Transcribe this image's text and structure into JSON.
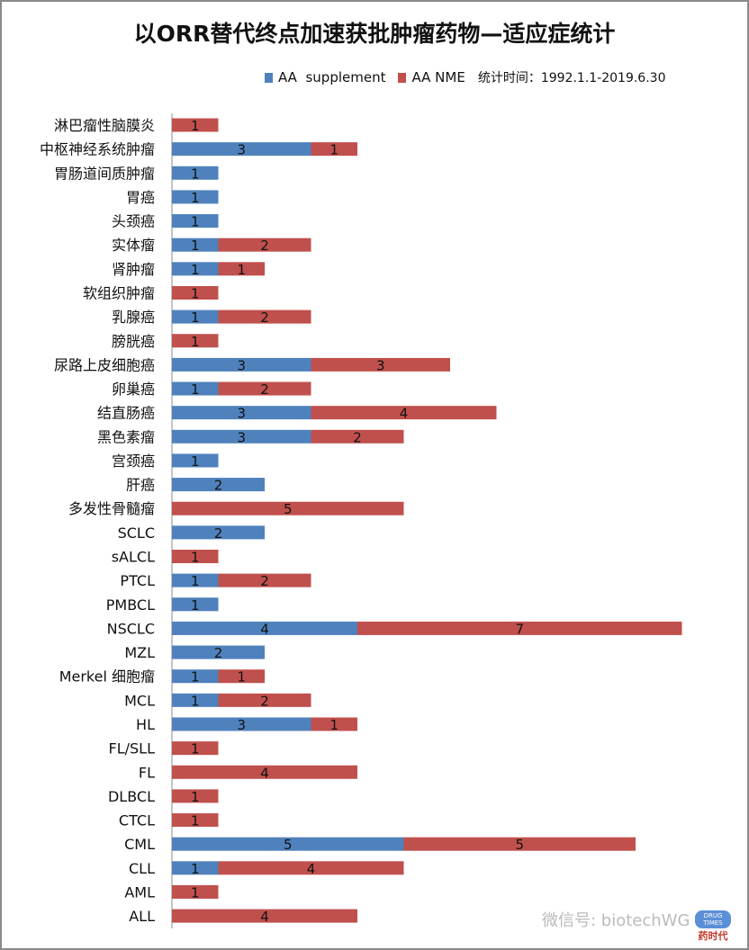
{
  "chart_data": {
    "type": "bar",
    "orientation": "horizontal",
    "stacked": true,
    "title": "以ORR替代终点加速获批肿瘤药物—适应症统计",
    "note": "统计时间：1992.1.1-2019.6.30",
    "legend_position": "top-right",
    "grid": false,
    "categories": [
      "淋巴瘤性脑膜炎",
      "中枢神经系统肿瘤",
      "胃肠道间质肿瘤",
      "胃癌",
      "头颈癌",
      "实体瘤",
      "肾肿瘤",
      "软组织肿瘤",
      "乳腺癌",
      "膀胱癌",
      "尿路上皮细胞癌",
      "卵巢癌",
      "结直肠癌",
      "黑色素瘤",
      "宫颈癌",
      "肝癌",
      "多发性骨髓瘤",
      "SCLC",
      "sALCL",
      "PTCL",
      "PMBCL",
      "NSCLC",
      "MZL",
      "Merkel 细胞瘤",
      "MCL",
      "HL",
      "FL/SLL",
      "FL",
      "DLBCL",
      "CTCL",
      "CML",
      "CLL",
      "AML",
      "ALL"
    ],
    "series": [
      {
        "name": "AA  supplement",
        "color": "#4f81bd",
        "values": [
          0,
          3,
          1,
          1,
          1,
          1,
          1,
          0,
          1,
          0,
          3,
          1,
          3,
          3,
          1,
          2,
          0,
          2,
          0,
          1,
          1,
          4,
          2,
          1,
          1,
          3,
          0,
          0,
          0,
          0,
          5,
          1,
          0,
          0
        ]
      },
      {
        "name": "AA NME",
        "color": "#c0504d",
        "values": [
          1,
          1,
          0,
          0,
          0,
          2,
          1,
          1,
          2,
          1,
          3,
          2,
          4,
          2,
          0,
          0,
          5,
          0,
          1,
          2,
          0,
          7,
          0,
          1,
          2,
          1,
          1,
          4,
          1,
          1,
          5,
          4,
          1,
          4
        ]
      }
    ],
    "xlim": [
      0,
      11
    ]
  },
  "watermark": {
    "text": "微信号: biotechWG",
    "logo_text": "DRUG TIMES",
    "logo_cn": "药时代"
  }
}
